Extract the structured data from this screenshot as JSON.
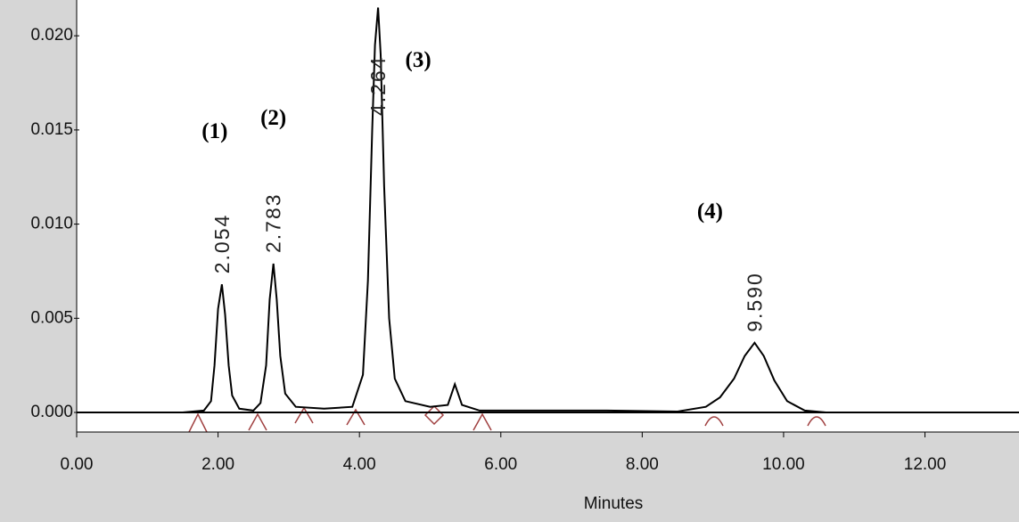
{
  "chart_data": {
    "type": "line",
    "xlabel": "Minutes",
    "xlim": [
      0,
      13.33
    ],
    "ylim": [
      -0.00104,
      0.0219
    ],
    "xticks": [
      {
        "value": 0,
        "label": "0.00"
      },
      {
        "value": 2,
        "label": "2.00"
      },
      {
        "value": 4,
        "label": "4.00"
      },
      {
        "value": 6,
        "label": "6.00"
      },
      {
        "value": 8,
        "label": "8.00"
      },
      {
        "value": 10,
        "label": "10.00"
      },
      {
        "value": 12,
        "label": "12.00"
      }
    ],
    "yticks": [
      {
        "value": 0,
        "label": "0.000"
      },
      {
        "value": 0.005,
        "label": "0.005"
      },
      {
        "value": 0.01,
        "label": "0.010"
      },
      {
        "value": 0.015,
        "label": "0.015"
      },
      {
        "value": 0.02,
        "label": "0.020"
      }
    ],
    "x": [
      0,
      1.5,
      1.8,
      1.9,
      1.95,
      2.0,
      2.054,
      2.1,
      2.15,
      2.2,
      2.3,
      2.5,
      2.6,
      2.68,
      2.73,
      2.783,
      2.83,
      2.88,
      2.95,
      3.1,
      3.5,
      3.9,
      4.05,
      4.12,
      4.18,
      4.22,
      4.264,
      4.3,
      4.35,
      4.42,
      4.5,
      4.65,
      5.0,
      5.25,
      5.35,
      5.45,
      5.7,
      6.5,
      7.5,
      8.5,
      8.9,
      9.1,
      9.3,
      9.45,
      9.59,
      9.72,
      9.87,
      10.05,
      10.3,
      10.6,
      13.33
    ],
    "series": [
      {
        "color": "#000000",
        "values": [
          0,
          0,
          0.0001,
          0.0006,
          0.0025,
          0.0055,
          0.0068,
          0.0052,
          0.0025,
          0.0009,
          0.0002,
          0.0001,
          0.0005,
          0.0025,
          0.006,
          0.0079,
          0.006,
          0.003,
          0.001,
          0.0003,
          0.0002,
          0.0003,
          0.002,
          0.007,
          0.015,
          0.0195,
          0.0215,
          0.019,
          0.012,
          0.005,
          0.0018,
          0.0006,
          0.0003,
          0.0004,
          0.0015,
          0.0004,
          0.0001,
          0.0001,
          0.0001,
          5e-05,
          0.0003,
          0.0008,
          0.0018,
          0.003,
          0.0037,
          0.003,
          0.0017,
          0.0006,
          0.0001,
          0,
          0
        ]
      }
    ],
    "peaks": [
      {
        "name": "(1)",
        "retention": "2.054",
        "x": 2.054,
        "height": 0.0068
      },
      {
        "name": "(2)",
        "retention": "2.783",
        "x": 2.783,
        "height": 0.0079
      },
      {
        "name": "(3)",
        "retention": "4.264",
        "x": 4.264,
        "height": 0.0215
      },
      {
        "name": "(4)",
        "retention": "9.590",
        "x": 9.59,
        "height": 0.0037
      }
    ]
  }
}
